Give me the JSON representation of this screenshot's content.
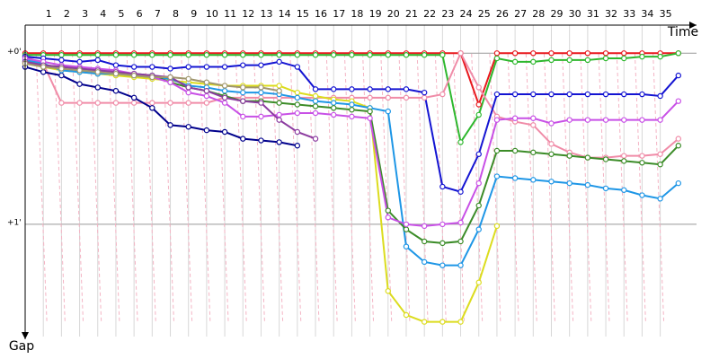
{
  "chart_data": {
    "type": "line",
    "x_label": "Time",
    "y_label": "Gap",
    "x": [
      0,
      1,
      2,
      3,
      4,
      5,
      6,
      7,
      8,
      9,
      10,
      11,
      12,
      13,
      14,
      15,
      16,
      17,
      18,
      19,
      20,
      21,
      22,
      23,
      24,
      25,
      26,
      27,
      28,
      29,
      30,
      31,
      32,
      33,
      34,
      35,
      36
    ],
    "xlim": [
      0,
      37
    ],
    "xticks": [
      1,
      2,
      3,
      4,
      5,
      6,
      7,
      8,
      9,
      10,
      11,
      12,
      13,
      14,
      15,
      16,
      17,
      18,
      19,
      20,
      21,
      22,
      23,
      24,
      25,
      26,
      27,
      28,
      29,
      30,
      31,
      32,
      33,
      34,
      35
    ],
    "ylim": [
      -0.18,
      1.63
    ],
    "yticks": [
      {
        "value": 0,
        "label": "+0'"
      },
      {
        "value": 1,
        "label": "+1'"
      }
    ],
    "grid": true,
    "series": [
      {
        "color": "#e8191e",
        "values": [
          0,
          0,
          0,
          0,
          0,
          0,
          0,
          0,
          0,
          0,
          0,
          0,
          0,
          0,
          0,
          0,
          0,
          0,
          0,
          0,
          0,
          0,
          0,
          0,
          0,
          0.3,
          0,
          0,
          0,
          0,
          0,
          0,
          0,
          0,
          0,
          0,
          0
        ]
      },
      {
        "color": "#2eb82e",
        "values": [
          0.01,
          0.01,
          0.01,
          0.01,
          0.01,
          0.01,
          0.01,
          0.01,
          0.01,
          0.01,
          0.01,
          0.01,
          0.01,
          0.01,
          0.01,
          0.01,
          0.01,
          0.01,
          0.01,
          0.01,
          0.01,
          0.01,
          0.01,
          0.01,
          0.52,
          0.36,
          0.03,
          0.05,
          0.05,
          0.04,
          0.04,
          0.04,
          0.03,
          0.03,
          0.02,
          0.02,
          0
        ]
      },
      {
        "color": "#f08ca8",
        "values": [
          0.02,
          0.06,
          0.29,
          0.29,
          0.29,
          0.29,
          0.29,
          0.29,
          0.29,
          0.29,
          0.29,
          0.26,
          0.26,
          0.26,
          0.26,
          0.26,
          0.26,
          0.26,
          0.26,
          0.26,
          0.26,
          0.26,
          0.26,
          0.24,
          0,
          0.2,
          0.37,
          0.4,
          0.42,
          0.53,
          0.58,
          0.61,
          0.61,
          0.6,
          0.6,
          0.59,
          0.5
        ]
      },
      {
        "color": "#1414d2",
        "values": [
          0.02,
          0.03,
          0.04,
          0.05,
          0.04,
          0.07,
          0.08,
          0.08,
          0.09,
          0.08,
          0.08,
          0.08,
          0.07,
          0.07,
          0.05,
          0.08,
          0.21,
          0.21,
          0.21,
          0.21,
          0.21,
          0.21,
          0.23,
          0.78,
          0.81,
          0.59,
          0.24,
          0.24,
          0.24,
          0.24,
          0.24,
          0.24,
          0.24,
          0.24,
          0.24,
          0.25,
          0.13
        ]
      },
      {
        "color": "#00008c",
        "values": [
          0.08,
          0.11,
          0.13,
          0.18,
          0.2,
          0.22,
          0.26,
          0.32,
          0.42,
          0.43,
          0.45,
          0.46,
          0.5,
          0.51,
          0.52,
          0.54,
          null,
          null,
          null,
          null,
          null,
          null,
          null,
          null,
          null,
          null,
          null,
          null,
          null,
          null,
          null,
          null,
          null,
          null,
          null,
          null,
          null
        ]
      },
      {
        "color": "#dcdc1e",
        "values": [
          0.06,
          0.08,
          0.1,
          0.11,
          0.12,
          0.13,
          0.14,
          0.15,
          0.16,
          0.17,
          0.18,
          0.19,
          0.19,
          0.19,
          0.19,
          0.23,
          0.25,
          0.27,
          0.28,
          0.32,
          1.39,
          1.53,
          1.57,
          1.57,
          1.57,
          1.34,
          1.01,
          null,
          null,
          null,
          null,
          null,
          null,
          null,
          null,
          null,
          null
        ]
      },
      {
        "color": "#1e96e6",
        "values": [
          0.04,
          0.06,
          0.1,
          0.11,
          0.12,
          0.12,
          0.13,
          0.14,
          0.15,
          0.19,
          0.2,
          0.22,
          0.23,
          0.23,
          0.24,
          0.26,
          0.28,
          0.29,
          0.3,
          0.32,
          0.34,
          1.13,
          1.22,
          1.24,
          1.24,
          1.03,
          0.72,
          0.73,
          0.74,
          0.75,
          0.76,
          0.77,
          0.79,
          0.8,
          0.83,
          0.85,
          0.76
        ]
      },
      {
        "color": "#3c8c28",
        "values": [
          0.05,
          0.07,
          0.08,
          0.09,
          0.1,
          0.11,
          0.12,
          0.13,
          0.17,
          0.2,
          0.22,
          0.25,
          0.28,
          0.28,
          0.29,
          0.3,
          0.31,
          0.32,
          0.33,
          0.34,
          0.92,
          1.03,
          1.1,
          1.11,
          1.1,
          0.89,
          0.57,
          0.57,
          0.58,
          0.59,
          0.6,
          0.61,
          0.62,
          0.63,
          0.64,
          0.65,
          0.54
        ]
      },
      {
        "color": "#c850e6",
        "values": [
          0.03,
          0.05,
          0.07,
          0.08,
          0.09,
          0.1,
          0.12,
          0.14,
          0.17,
          0.23,
          0.25,
          0.29,
          0.37,
          0.37,
          0.36,
          0.35,
          0.35,
          0.36,
          0.37,
          0.38,
          0.96,
          1.0,
          1.01,
          1.0,
          0.99,
          0.76,
          0.39,
          0.38,
          0.38,
          0.41,
          0.39,
          0.39,
          0.39,
          0.39,
          0.39,
          0.39,
          0.28
        ]
      },
      {
        "color": "#8c3ca0",
        "values": [
          0.05,
          0.07,
          0.08,
          0.09,
          0.1,
          0.11,
          0.12,
          0.13,
          0.14,
          0.2,
          0.22,
          0.26,
          0.28,
          0.29,
          0.39,
          0.46,
          0.5,
          null,
          null,
          null,
          null,
          null,
          null,
          null,
          null,
          null,
          null,
          null,
          null,
          null,
          null,
          null,
          null,
          null,
          null,
          null,
          null
        ]
      },
      {
        "color": "#a0966e",
        "values": [
          0.06,
          0.08,
          0.09,
          0.1,
          0.11,
          0.12,
          0.13,
          0.14,
          0.14,
          0.15,
          0.17,
          0.19,
          0.2,
          0.2,
          0.22,
          null,
          null,
          null,
          null,
          null,
          null,
          null,
          null,
          null,
          null,
          null,
          null,
          null,
          null,
          null,
          null,
          null,
          null,
          null,
          null,
          null,
          null
        ]
      }
    ]
  }
}
